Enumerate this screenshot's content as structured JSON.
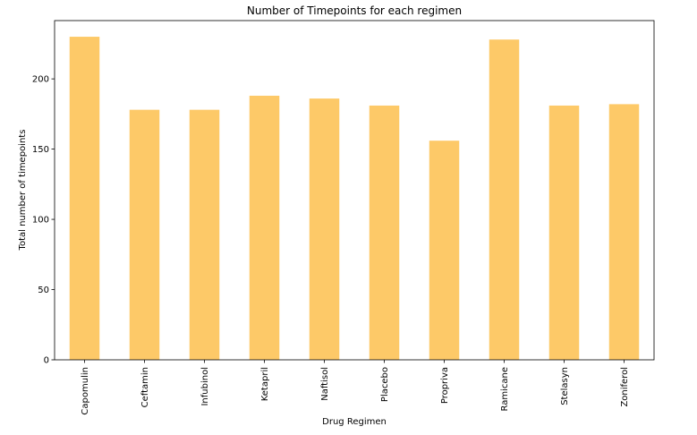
{
  "chart_data": {
    "type": "bar",
    "title": "Number of Timepoints for each regimen",
    "xlabel": "Drug Regimen",
    "ylabel": "Total number of timepoints",
    "categories": [
      "Capomulin",
      "Ceftamin",
      "Infubinol",
      "Ketapril",
      "Naftisol",
      "Placebo",
      "Propriva",
      "Ramicane",
      "Stelasyn",
      "Zoniferol"
    ],
    "values": [
      230,
      178,
      178,
      188,
      186,
      181,
      156,
      228,
      181,
      182
    ],
    "ylim": [
      0,
      241.5
    ],
    "yticks": [
      0,
      50,
      100,
      150,
      200
    ],
    "bar_color": "#fdc968",
    "grid": false,
    "legend": false
  }
}
